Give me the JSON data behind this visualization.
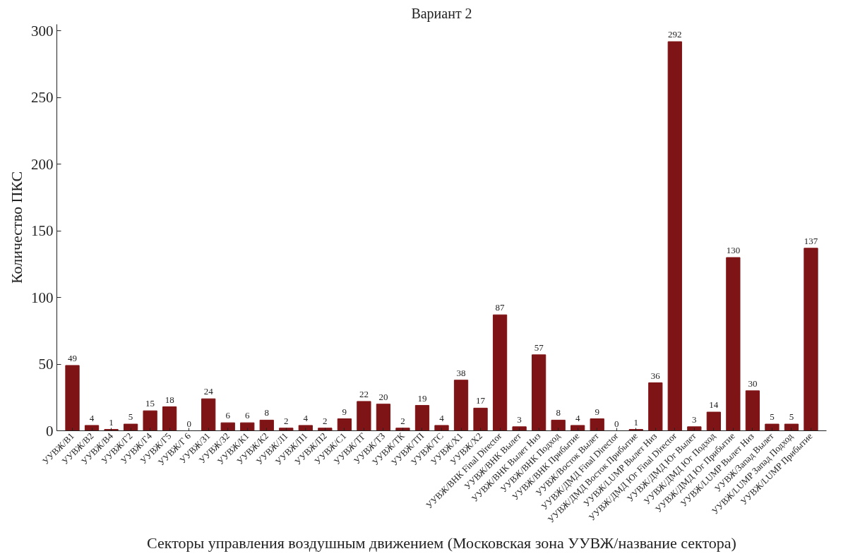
{
  "chart_data": {
    "type": "bar",
    "title": "Вариант 2",
    "xlabel": "Секторы управления воздушным движением (Московская зона УУВЖ/название сектора)",
    "ylabel": "Количество ПКС",
    "categories": [
      "УУВЖ/В1",
      "УУВЖ/В2",
      "УУВЖ/В4",
      "УУВЖ/Г2",
      "УУВЖ/Г4",
      "УУВЖ/Г5",
      "УУВЖ/Г 6",
      "УУВЖ/З1",
      "УУВЖ/З2",
      "УУВЖ/К1",
      "УУВЖ/К2",
      "УУВЖ/Л1",
      "УУВЖ/П1",
      "УУВЖ/П2",
      "УУВЖ/С1",
      "УУВЖ/ТГ",
      "УУВЖ/ТЗ",
      "УУВЖ/ТК",
      "УУВЖ/ТП",
      "УУВЖ/ТС",
      "УУВЖ/Х1",
      "УУВЖ/Х2",
      "УУВЖ/ВНК Final Director",
      "УУВЖ/ВНК Вылет",
      "УУВЖ/ВНК Вылет Низ",
      "УУВЖ/ВНК Подход",
      "УУВЖ/ВНК Прибытие",
      "УУВЖ/Восток Вылет",
      "УУВЖ/ДМД Final Director",
      "УУВЖ/ДМД Восток Прибытие",
      "УУВЖ/LUMP Вылет Низ",
      "УУВЖ/ДМД Юг Final Director",
      "УУВЖ/ДМД Юг Вылет",
      "УУВЖ/ДМД Юг Подход",
      "УУВЖ/ДМД Юг Прибытие",
      "УУВЖ/LUMP Вылет Низ",
      "УУВЖ/Запад Вылет",
      "УУВЖ/LUMP Запад Подход",
      "УУВЖ/LUMP Прибытие"
    ],
    "values": [
      49,
      4,
      1,
      5,
      15,
      18,
      0,
      24,
      6,
      6,
      8,
      2,
      4,
      2,
      9,
      22,
      20,
      2,
      19,
      4,
      38,
      17,
      87,
      3,
      57,
      8,
      4,
      9,
      0,
      1,
      36,
      292,
      3,
      14,
      130,
      30,
      5,
      5,
      137
    ],
    "color": "#7f1416",
    "ylim": [
      0,
      305
    ],
    "yticks": [
      0,
      50,
      100,
      150,
      200,
      250,
      300
    ],
    "data_labels": true,
    "grid": false
  }
}
